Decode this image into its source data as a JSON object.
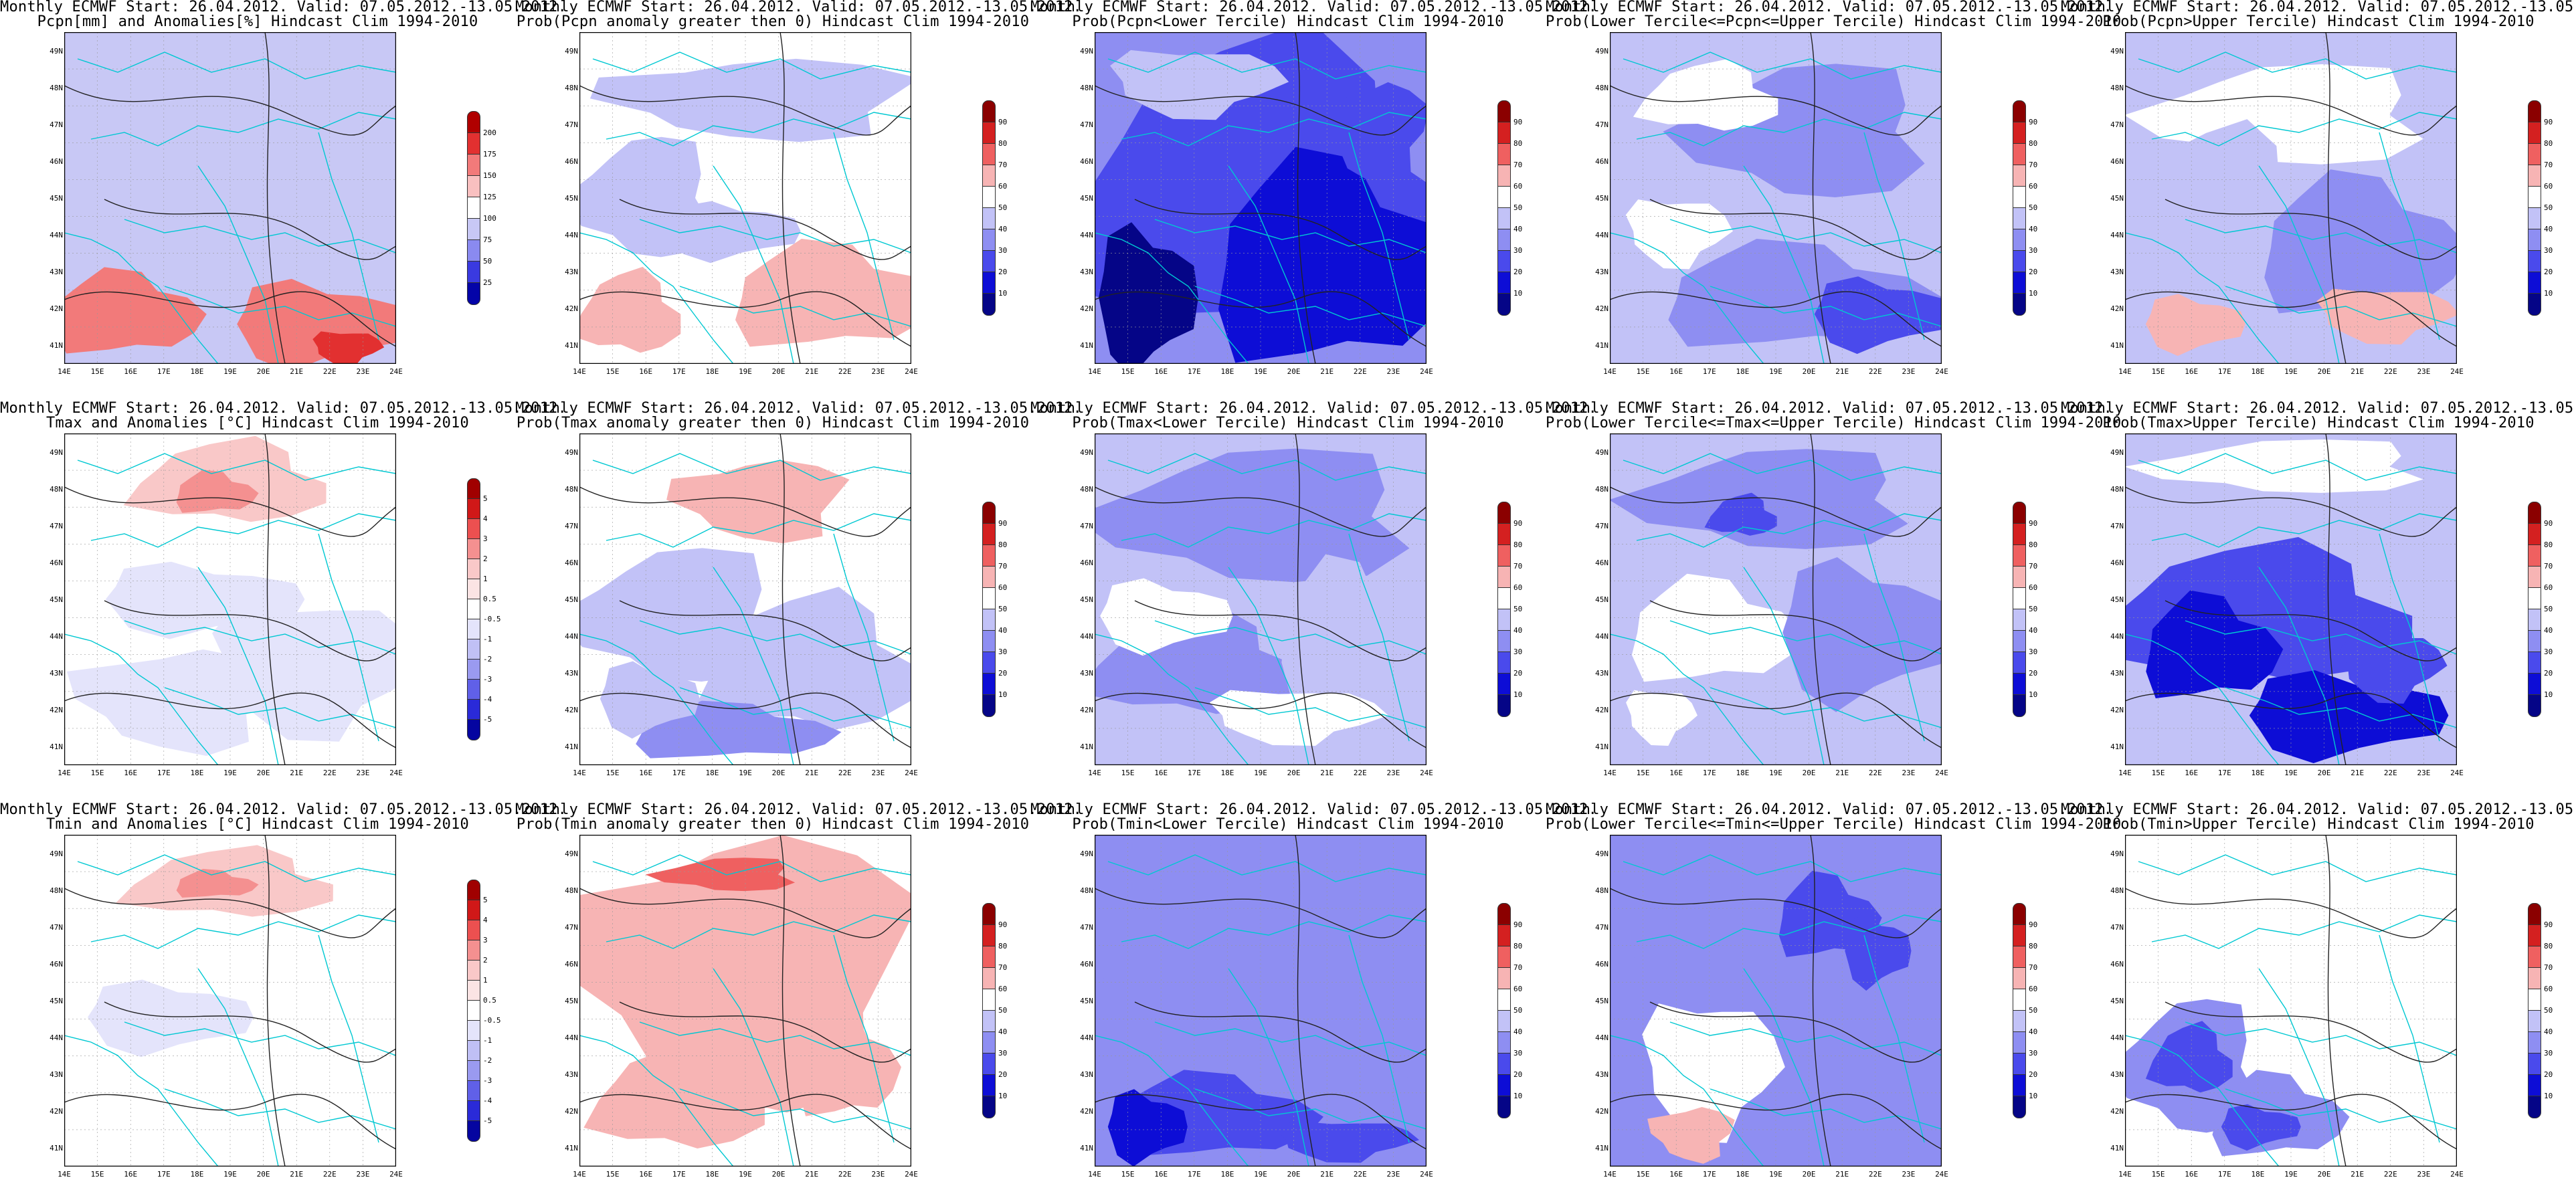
{
  "header": {
    "line1": "Monthly ECMWF Start: 26.04.2012. Valid: 07.05.2012.-13.05.2012."
  },
  "panels": [
    {
      "name": "pcpn-anomaly",
      "title2": "Pcpn[mm] and Anomalies[%] Hindcast Clim 1994-2010",
      "colorbar": "anom",
      "levels": [
        "200",
        "175",
        "150",
        "125",
        "100",
        "75",
        "50",
        "25"
      ],
      "pattern": "pcpn_anom"
    },
    {
      "name": "prob-pcpn-anomaly-gt0",
      "title2": "Prob(Pcpn anomaly greater then 0) Hindcast Clim 1994-2010",
      "colorbar": "prob",
      "levels": [
        "90",
        "80",
        "70",
        "60",
        "50",
        "40",
        "30",
        "20",
        "10"
      ],
      "pattern": "pcpn_prob"
    },
    {
      "name": "prob-pcpn-lower",
      "title2": "Prob(Pcpn<Lower Tercile) Hindcast Clim 1994-2010",
      "colorbar": "prob",
      "levels": [
        "90",
        "80",
        "70",
        "60",
        "50",
        "40",
        "30",
        "20",
        "10"
      ],
      "pattern": "pcpn_low"
    },
    {
      "name": "prob-pcpn-middle",
      "title2": "Prob(Lower Tercile<=Pcpn<=Upper Tercile) Hindcast Clim 1994-2010",
      "colorbar": "prob",
      "levels": [
        "90",
        "80",
        "70",
        "60",
        "50",
        "40",
        "30",
        "20",
        "10"
      ],
      "pattern": "pcpn_mid"
    },
    {
      "name": "prob-pcpn-upper",
      "title2": "Prob(Pcpn>Upper Tercile) Hindcast Clim 1994-2010",
      "colorbar": "prob",
      "levels": [
        "90",
        "80",
        "70",
        "60",
        "50",
        "40",
        "30",
        "20",
        "10"
      ],
      "pattern": "pcpn_up"
    },
    {
      "name": "tmax-anomaly",
      "title2": "Tmax and Anomalies [°C] Hindcast Clim 1994-2010",
      "colorbar": "temp",
      "levels": [
        "5",
        "4",
        "3",
        "2",
        "1",
        "0.5",
        "-0.5",
        "-1",
        "-2",
        "-3",
        "-4",
        "-5"
      ],
      "pattern": "tmax_anom"
    },
    {
      "name": "prob-tmax-anomaly-gt0",
      "title2": "Prob(Tmax anomaly greater then 0) Hindcast Clim 1994-2010",
      "colorbar": "prob",
      "levels": [
        "90",
        "80",
        "70",
        "60",
        "50",
        "40",
        "30",
        "20",
        "10"
      ],
      "pattern": "tmax_prob"
    },
    {
      "name": "prob-tmax-lower",
      "title2": "Prob(Tmax<Lower Tercile) Hindcast Clim 1994-2010",
      "colorbar": "prob",
      "levels": [
        "90",
        "80",
        "70",
        "60",
        "50",
        "40",
        "30",
        "20",
        "10"
      ],
      "pattern": "tmax_low"
    },
    {
      "name": "prob-tmax-middle",
      "title2": "Prob(Lower Tercile<=Tmax<=Upper Tercile) Hindcast Clim 1994-2010",
      "colorbar": "prob",
      "levels": [
        "90",
        "80",
        "70",
        "60",
        "50",
        "40",
        "30",
        "20",
        "10"
      ],
      "pattern": "tmax_mid"
    },
    {
      "name": "prob-tmax-upper",
      "title2": "Prob(Tmax>Upper Tercile) Hindcast Clim 1994-2010",
      "colorbar": "prob",
      "levels": [
        "90",
        "80",
        "70",
        "60",
        "50",
        "40",
        "30",
        "20",
        "10"
      ],
      "pattern": "tmax_up"
    },
    {
      "name": "tmin-anomaly",
      "title2": "Tmin and Anomalies [°C] Hindcast Clim 1994-2010",
      "colorbar": "temp",
      "levels": [
        "5",
        "4",
        "3",
        "2",
        "1",
        "0.5",
        "-0.5",
        "-1",
        "-2",
        "-3",
        "-4",
        "-5"
      ],
      "pattern": "tmin_anom"
    },
    {
      "name": "prob-tmin-anomaly-gt0",
      "title2": "Prob(Tmin anomaly greater then 0) Hindcast Clim 1994-2010",
      "colorbar": "prob",
      "levels": [
        "90",
        "80",
        "70",
        "60",
        "50",
        "40",
        "30",
        "20",
        "10"
      ],
      "pattern": "tmin_prob"
    },
    {
      "name": "prob-tmin-lower",
      "title2": "Prob(Tmin<Lower Tercile) Hindcast Clim 1994-2010",
      "colorbar": "prob",
      "levels": [
        "90",
        "80",
        "70",
        "60",
        "50",
        "40",
        "30",
        "20",
        "10"
      ],
      "pattern": "tmin_low"
    },
    {
      "name": "prob-tmin-middle",
      "title2": "Prob(Lower Tercile<=Tmin<=Upper Tercile) Hindcast Clim 1994-2010",
      "colorbar": "prob",
      "levels": [
        "90",
        "80",
        "70",
        "60",
        "50",
        "40",
        "30",
        "20",
        "10"
      ],
      "pattern": "tmin_mid"
    },
    {
      "name": "prob-tmin-upper",
      "title2": "Prob(Tmin>Upper Tercile) Hindcast Clim 1994-2010",
      "colorbar": "prob",
      "levels": [
        "90",
        "80",
        "70",
        "60",
        "50",
        "40",
        "30",
        "20",
        "10"
      ],
      "pattern": "tmin_up"
    }
  ],
  "axes": {
    "lat_labels": [
      "49N",
      "48N",
      "47N",
      "46N",
      "45N",
      "44N",
      "43N",
      "42N",
      "41N"
    ],
    "lon_labels": [
      "14E",
      "15E",
      "16E",
      "17E",
      "18E",
      "19E",
      "20E",
      "21E",
      "22E",
      "23E",
      "24E"
    ]
  },
  "colors": {
    "prob": [
      "#8b0000",
      "#d42020",
      "#ef6060",
      "#f7b4b4",
      "#ffffff",
      "#c2c2f7",
      "#8e8ef2",
      "#4a4aec",
      "#0d0dd6",
      "#050587"
    ],
    "anom": [
      "#b00000",
      "#e23030",
      "#f27a7a",
      "#f9c0c0",
      "#ffffff",
      "#c8c8f5",
      "#8a8af0",
      "#3a3ae0",
      "#0404a8"
    ],
    "temp": [
      "#a00000",
      "#d01818",
      "#ec5050",
      "#f49090",
      "#f9c8c8",
      "#fbe4e4",
      "#ffffff",
      "#e4e4fb",
      "#c0c0f5",
      "#9a9af0",
      "#6060e8",
      "#2a2ad8",
      "#0505a0"
    ],
    "coast": "#00c8d2",
    "contour": "#222222"
  }
}
